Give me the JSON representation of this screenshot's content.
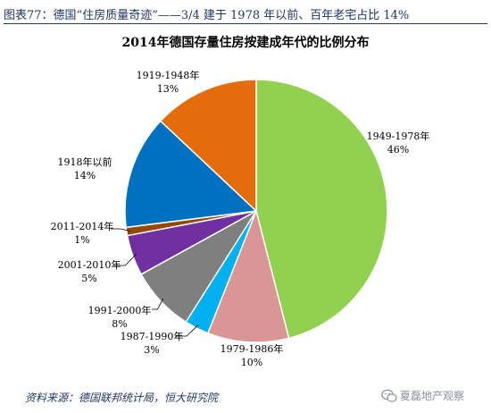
{
  "caption": "图表77：德国“住房质量奇迹”——3/4 建于 1978 年以前、百年老宅占比 14%",
  "source": "资料来源：德国联邦统计局，恒大研究院",
  "watermark": "夏磊地产观察",
  "colors": {
    "caption": "#1f3864",
    "slices": [
      "#92d050",
      "#da9694",
      "#00b0f0",
      "#7f7f7f",
      "#7030a0",
      "#974706",
      "#0070c0",
      "#e46c0a"
    ]
  },
  "chart_data": {
    "type": "pie",
    "title": "2014年德国存量住房按建成年代的比例分布",
    "start_angle_deg": 0,
    "direction": "clockwise",
    "legend": "none",
    "slices": [
      {
        "label": "1949-1978年",
        "value": 46,
        "value_label": "46%"
      },
      {
        "label": "1979-1986年",
        "value": 10,
        "value_label": "10%"
      },
      {
        "label": "1987-1990年",
        "value": 3,
        "value_label": "3%"
      },
      {
        "label": "1991-2000年",
        "value": 8,
        "value_label": "8%"
      },
      {
        "label": "2001-2010年",
        "value": 5,
        "value_label": "5%"
      },
      {
        "label": "2011-2014年",
        "value": 1,
        "value_label": "1%"
      },
      {
        "label": "1918年以前",
        "value": 14,
        "value_label": "14%"
      },
      {
        "label": "1919-1948年",
        "value": 13,
        "value_label": "13%"
      }
    ]
  }
}
